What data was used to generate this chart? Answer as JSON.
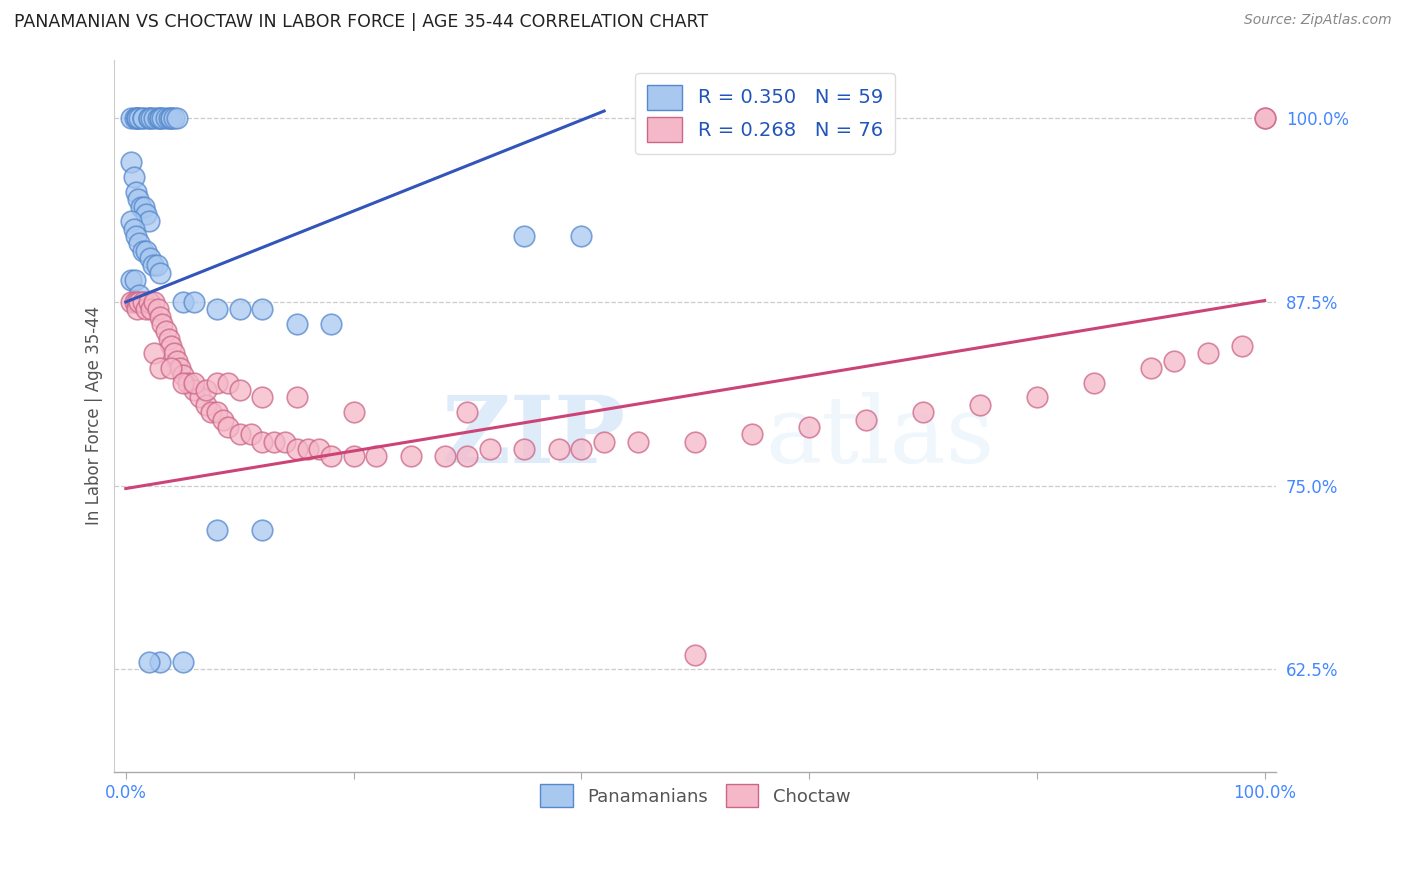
{
  "title": "PANAMANIAN VS CHOCTAW IN LABOR FORCE | AGE 35-44 CORRELATION CHART",
  "source": "Source: ZipAtlas.com",
  "ylabel": "In Labor Force | Age 35-44",
  "watermark_zip": "ZIP",
  "watermark_atlas": "atlas",
  "blue_R": 0.35,
  "blue_N": 59,
  "pink_R": 0.268,
  "pink_N": 76,
  "blue_color": "#a8c8f0",
  "blue_edge_color": "#5588cc",
  "pink_color": "#f5b8c8",
  "pink_edge_color": "#cc6688",
  "blue_line_color": "#3355bb",
  "pink_line_color": "#cc4477",
  "grid_color": "#cccccc",
  "ytick_color": "#4488ff",
  "xtick_color": "#4488ff",
  "blue_points_x": [
    0.005,
    0.008,
    0.01,
    0.01,
    0.01,
    0.012,
    0.015,
    0.015,
    0.02,
    0.02,
    0.022,
    0.025,
    0.028,
    0.03,
    0.03,
    0.032,
    0.035,
    0.038,
    0.04,
    0.04,
    0.042,
    0.045,
    0.005,
    0.007,
    0.009,
    0.011,
    0.013,
    0.016,
    0.018,
    0.02,
    0.005,
    0.007,
    0.009,
    0.012,
    0.015,
    0.018,
    0.021,
    0.024,
    0.027,
    0.03,
    0.005,
    0.008,
    0.012,
    0.016,
    0.02,
    0.05,
    0.06,
    0.08,
    0.1,
    0.12,
    0.15,
    0.18,
    0.08,
    0.12,
    0.35,
    0.4,
    0.05,
    0.03,
    0.02
  ],
  "blue_points_y": [
    1.0,
    1.0,
    1.0,
    1.0,
    1.0,
    1.0,
    1.0,
    1.0,
    1.0,
    1.0,
    1.0,
    1.0,
    1.0,
    1.0,
    1.0,
    1.0,
    1.0,
    1.0,
    1.0,
    1.0,
    1.0,
    1.0,
    0.97,
    0.96,
    0.95,
    0.945,
    0.94,
    0.94,
    0.935,
    0.93,
    0.93,
    0.925,
    0.92,
    0.915,
    0.91,
    0.91,
    0.905,
    0.9,
    0.9,
    0.895,
    0.89,
    0.89,
    0.88,
    0.875,
    0.875,
    0.875,
    0.875,
    0.87,
    0.87,
    0.87,
    0.86,
    0.86,
    0.72,
    0.72,
    0.92,
    0.92,
    0.63,
    0.63,
    0.63
  ],
  "pink_points_x": [
    0.005,
    0.008,
    0.01,
    0.01,
    0.012,
    0.015,
    0.018,
    0.02,
    0.022,
    0.025,
    0.028,
    0.03,
    0.032,
    0.035,
    0.038,
    0.04,
    0.042,
    0.045,
    0.048,
    0.05,
    0.055,
    0.06,
    0.065,
    0.07,
    0.075,
    0.08,
    0.085,
    0.09,
    0.1,
    0.11,
    0.12,
    0.13,
    0.14,
    0.15,
    0.16,
    0.17,
    0.18,
    0.2,
    0.22,
    0.25,
    0.28,
    0.3,
    0.32,
    0.35,
    0.38,
    0.4,
    0.42,
    0.45,
    0.5,
    0.55,
    0.6,
    0.65,
    0.7,
    0.75,
    0.8,
    0.85,
    0.9,
    0.92,
    0.95,
    0.98,
    1.0,
    1.0,
    0.025,
    0.03,
    0.04,
    0.05,
    0.06,
    0.07,
    0.08,
    0.09,
    0.1,
    0.12,
    0.15,
    0.2,
    0.3,
    0.5
  ],
  "pink_points_y": [
    0.875,
    0.875,
    0.875,
    0.87,
    0.875,
    0.875,
    0.87,
    0.875,
    0.87,
    0.875,
    0.87,
    0.865,
    0.86,
    0.855,
    0.85,
    0.845,
    0.84,
    0.835,
    0.83,
    0.825,
    0.82,
    0.815,
    0.81,
    0.805,
    0.8,
    0.8,
    0.795,
    0.79,
    0.785,
    0.785,
    0.78,
    0.78,
    0.78,
    0.775,
    0.775,
    0.775,
    0.77,
    0.77,
    0.77,
    0.77,
    0.77,
    0.77,
    0.775,
    0.775,
    0.775,
    0.775,
    0.78,
    0.78,
    0.78,
    0.785,
    0.79,
    0.795,
    0.8,
    0.805,
    0.81,
    0.82,
    0.83,
    0.835,
    0.84,
    0.845,
    1.0,
    1.0,
    0.84,
    0.83,
    0.83,
    0.82,
    0.82,
    0.815,
    0.82,
    0.82,
    0.815,
    0.81,
    0.81,
    0.8,
    0.8,
    0.635
  ]
}
